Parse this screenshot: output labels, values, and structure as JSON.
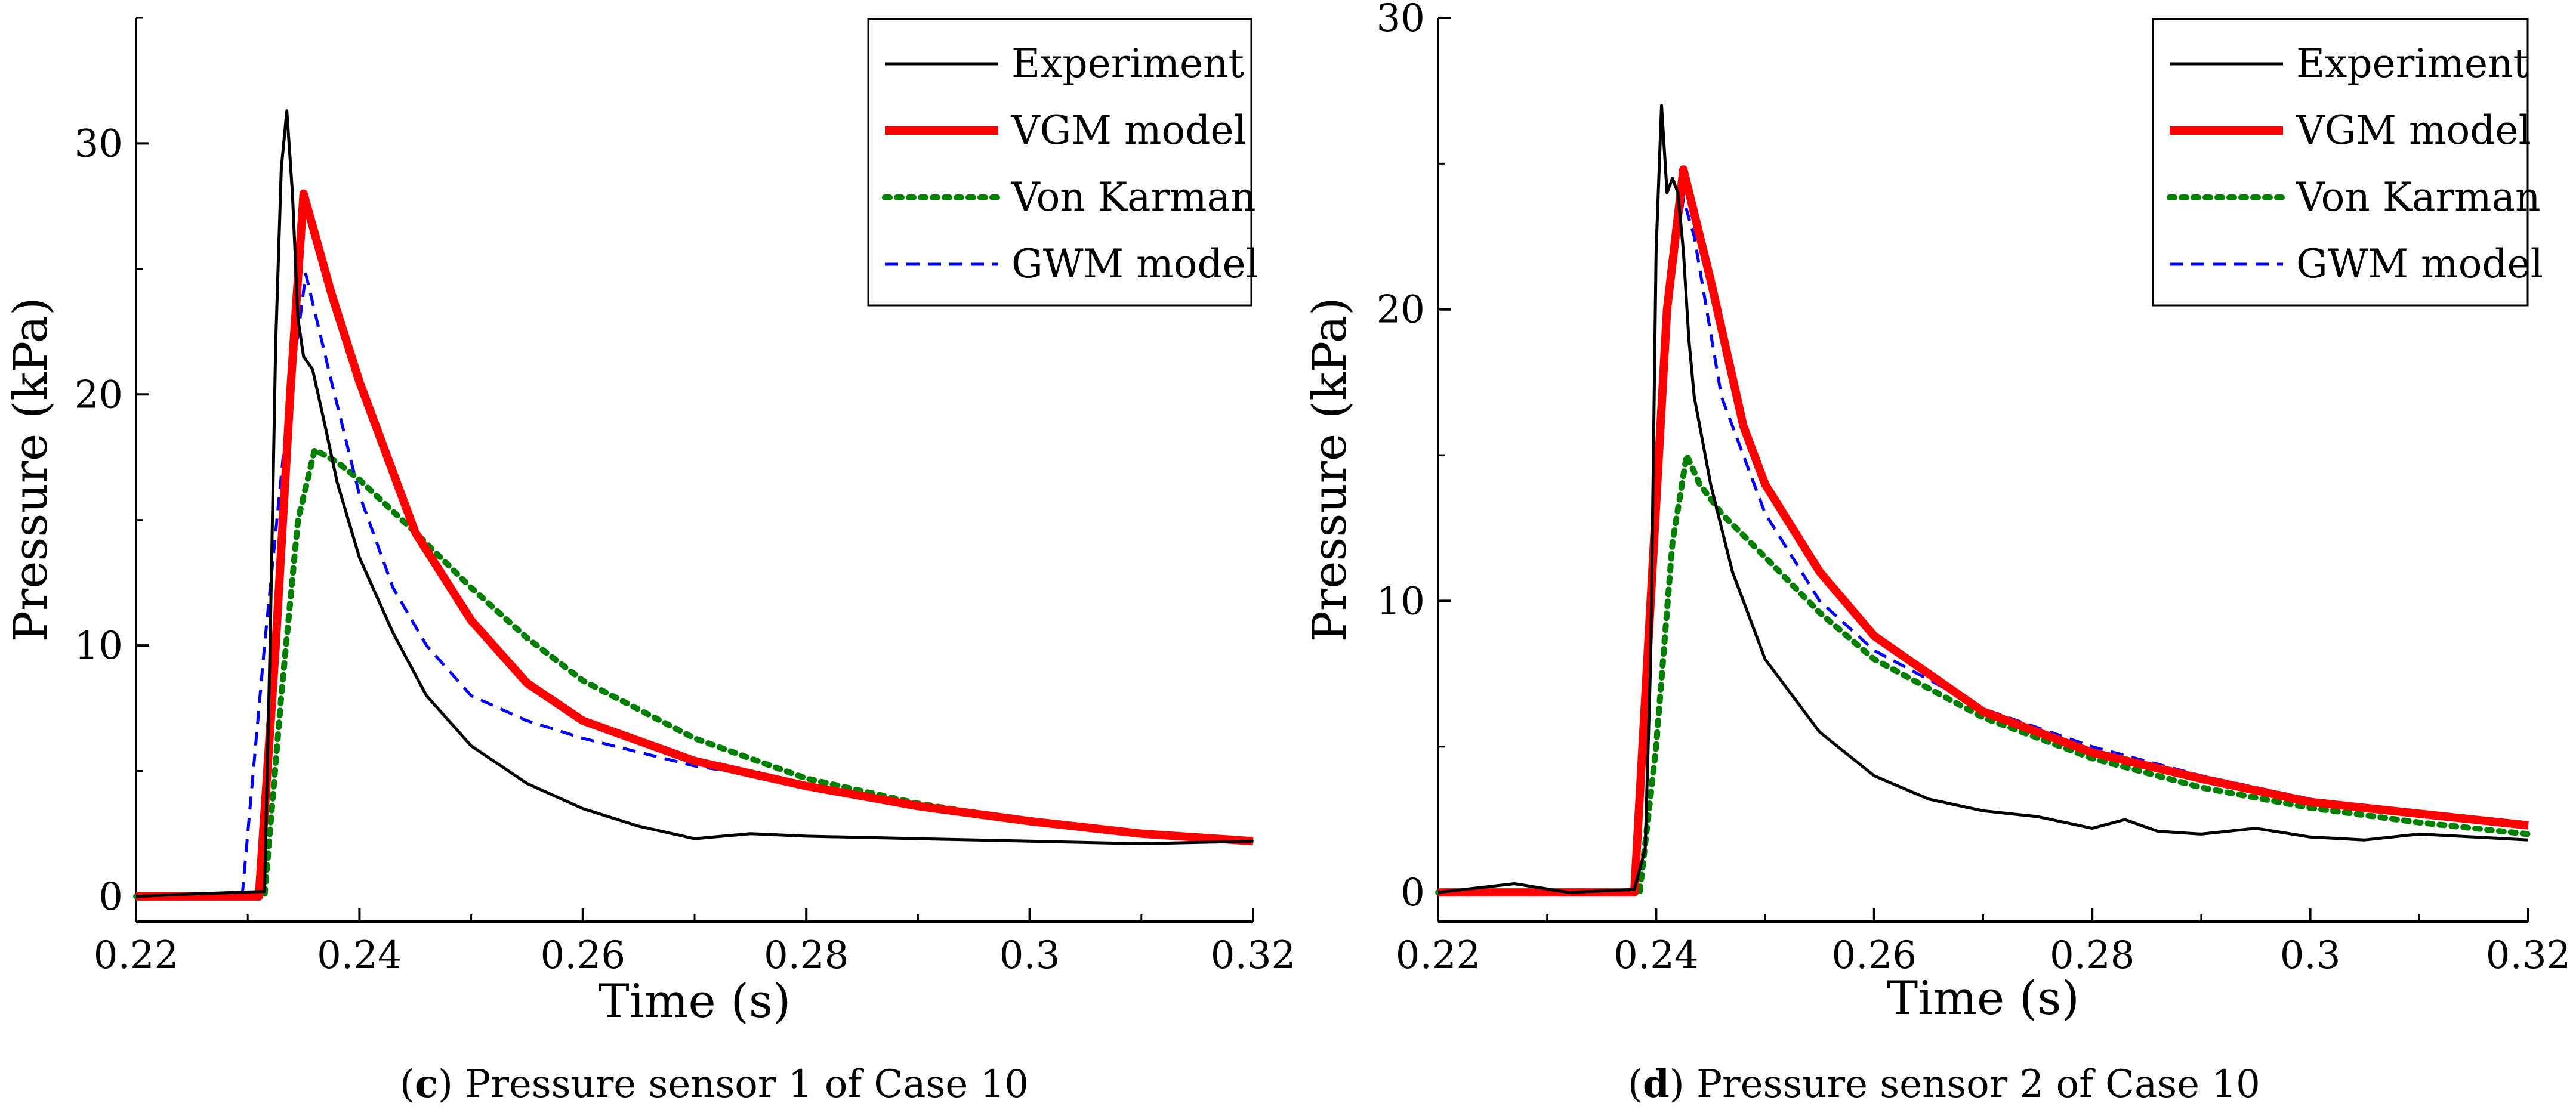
{
  "chart_data": [
    {
      "type": "line",
      "title": "",
      "xlabel": "Time (s)",
      "ylabel": "Pressure (kPa)",
      "xlim": [
        0.22,
        0.32
      ],
      "ylim": [
        -1,
        35
      ],
      "xticks": [
        0.22,
        0.24,
        0.26,
        0.28,
        0.3,
        0.32
      ],
      "xtick_labels": [
        "0.22",
        "0.24",
        "0.26",
        "0.28",
        "0.3",
        "0.32"
      ],
      "yticks": [
        0,
        10,
        20,
        30
      ],
      "ytick_labels": [
        "0",
        "10",
        "20",
        "30"
      ],
      "legend_position": "top-right",
      "caption": {
        "letter": "c",
        "text": "Pressure sensor 1 of Case 10"
      },
      "series": [
        {
          "name": "Experiment",
          "color": "#000000",
          "style": "solid-thin",
          "x": [
            0.22,
            0.225,
            0.2315,
            0.232,
            0.2325,
            0.233,
            0.2335,
            0.234,
            0.2345,
            0.235,
            0.2358,
            0.2368,
            0.238,
            0.24,
            0.243,
            0.246,
            0.25,
            0.255,
            0.26,
            0.265,
            0.27,
            0.275,
            0.28,
            0.29,
            0.3,
            0.31,
            0.32
          ],
          "y": [
            0,
            0.1,
            0.2,
            10,
            22,
            29,
            31.3,
            28,
            23,
            21.5,
            21,
            19,
            16.5,
            13.5,
            10.5,
            8,
            6,
            4.5,
            3.5,
            2.8,
            2.3,
            2.5,
            2.4,
            2.3,
            2.2,
            2.1,
            2.2
          ]
        },
        {
          "name": "VGM model",
          "color": "#ff0000",
          "style": "solid-thick",
          "x": [
            0.22,
            0.231,
            0.2325,
            0.2338,
            0.235,
            0.2375,
            0.24,
            0.245,
            0.25,
            0.255,
            0.26,
            0.27,
            0.28,
            0.29,
            0.3,
            0.31,
            0.32
          ],
          "y": [
            0,
            0,
            10,
            20,
            28,
            24,
            20.5,
            14.5,
            11,
            8.5,
            7,
            5.4,
            4.4,
            3.6,
            3.0,
            2.5,
            2.2
          ]
        },
        {
          "name": "Von Karman",
          "color": "#008000",
          "style": "dotted",
          "x": [
            0.22,
            0.2315,
            0.233,
            0.2345,
            0.236,
            0.238,
            0.24,
            0.245,
            0.25,
            0.255,
            0.26,
            0.27,
            0.28,
            0.29,
            0.3,
            0.31,
            0.32
          ],
          "y": [
            0,
            0,
            8,
            15,
            17.8,
            17.3,
            16.6,
            14.5,
            12.3,
            10.3,
            8.6,
            6.3,
            4.7,
            3.7,
            3.0,
            2.5,
            2.2
          ]
        },
        {
          "name": "GWM model",
          "color": "#0000ff",
          "style": "dashed",
          "x": [
            0.22,
            0.2295,
            0.2315,
            0.2335,
            0.2352,
            0.2375,
            0.24,
            0.243,
            0.246,
            0.25,
            0.255,
            0.26,
            0.27,
            0.28,
            0.29,
            0.3,
            0.31,
            0.32
          ],
          "y": [
            0,
            0,
            10,
            19,
            24.8,
            20.5,
            16,
            12.3,
            10,
            8,
            7,
            6.3,
            5.2,
            4.5,
            3.6,
            3.0,
            2.4,
            2.1
          ]
        }
      ]
    },
    {
      "type": "line",
      "title": "",
      "xlabel": "Time (s)",
      "ylabel": "Pressure (kPa)",
      "xlim": [
        0.22,
        0.32
      ],
      "ylim": [
        -1,
        30
      ],
      "xticks": [
        0.22,
        0.24,
        0.26,
        0.28,
        0.3,
        0.32
      ],
      "xtick_labels": [
        "0.22",
        "0.24",
        "0.26",
        "0.28",
        "0.3",
        "0.32"
      ],
      "yticks": [
        0,
        10,
        20,
        30
      ],
      "ytick_labels": [
        "0",
        "10",
        "20",
        "30"
      ],
      "legend_position": "top-right",
      "caption": {
        "letter": "d",
        "text": "Pressure sensor 2 of Case 10"
      },
      "series": [
        {
          "name": "Experiment",
          "color": "#000000",
          "style": "solid-thin",
          "x": [
            0.22,
            0.227,
            0.232,
            0.238,
            0.239,
            0.2395,
            0.24,
            0.2405,
            0.241,
            0.2415,
            0.242,
            0.2425,
            0.243,
            0.2435,
            0.244,
            0.245,
            0.247,
            0.25,
            0.255,
            0.26,
            0.265,
            0.27,
            0.275,
            0.28,
            0.283,
            0.286,
            0.29,
            0.295,
            0.3,
            0.305,
            0.31,
            0.315,
            0.32
          ],
          "y": [
            0,
            0.3,
            0,
            0.1,
            1.5,
            8,
            22,
            27,
            24,
            24.5,
            24,
            22,
            19,
            17,
            16,
            14,
            11,
            8,
            5.5,
            4,
            3.2,
            2.8,
            2.6,
            2.2,
            2.5,
            2.1,
            2.0,
            2.2,
            1.9,
            1.8,
            2.0,
            1.9,
            1.8
          ]
        },
        {
          "name": "VGM model",
          "color": "#ff0000",
          "style": "solid-thick",
          "x": [
            0.22,
            0.238,
            0.2395,
            0.241,
            0.2425,
            0.245,
            0.248,
            0.25,
            0.255,
            0.26,
            0.27,
            0.28,
            0.29,
            0.3,
            0.31,
            0.32
          ],
          "y": [
            0,
            0,
            10,
            20,
            24.8,
            21,
            16,
            14,
            11,
            8.8,
            6.2,
            4.8,
            3.9,
            3.1,
            2.7,
            2.3
          ]
        },
        {
          "name": "Von Karman",
          "color": "#008000",
          "style": "dotted",
          "x": [
            0.22,
            0.2385,
            0.24,
            0.2415,
            0.2428,
            0.244,
            0.246,
            0.25,
            0.255,
            0.26,
            0.27,
            0.28,
            0.29,
            0.3,
            0.31,
            0.32
          ],
          "y": [
            0,
            0,
            5,
            12,
            15,
            14,
            13,
            11.5,
            9.6,
            8,
            6,
            4.6,
            3.6,
            2.9,
            2.4,
            2.0
          ]
        },
        {
          "name": "GWM model",
          "color": "#0000ff",
          "style": "dashed",
          "x": [
            0.22,
            0.238,
            0.2395,
            0.241,
            0.2425,
            0.2435,
            0.246,
            0.25,
            0.255,
            0.26,
            0.27,
            0.28,
            0.29,
            0.3,
            0.31,
            0.32
          ],
          "y": [
            0,
            0,
            10,
            20,
            23.8,
            22.5,
            17,
            13,
            10,
            8.3,
            6.3,
            5,
            4,
            3.2,
            2.7,
            2.3
          ]
        }
      ]
    }
  ]
}
